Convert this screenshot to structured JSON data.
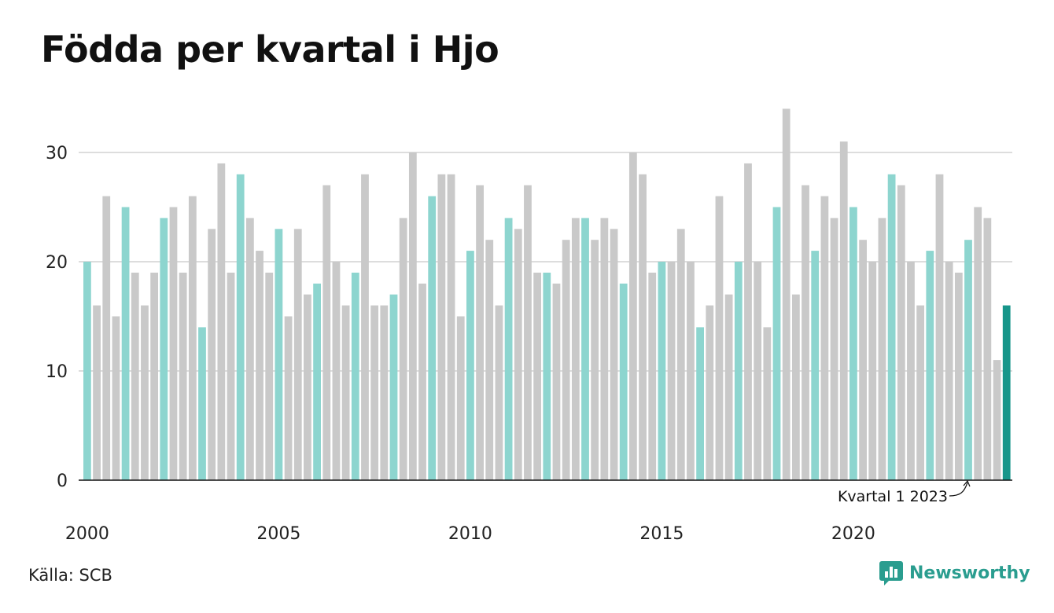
{
  "title": "Födda per kvartal i Hjo",
  "source": "Källa: SCB",
  "brand": {
    "name": "Newsworthy",
    "icon": "newsworthy-logo-icon"
  },
  "colors": {
    "q1": "#8dd5cf",
    "other": "#c9c9c9",
    "highlight": "#17968a",
    "grid": "#dddddd",
    "axis": "#111111"
  },
  "chart_data": {
    "type": "bar",
    "title": "Födda per kvartal i Hjo",
    "xlabel": "",
    "ylabel": "",
    "ylim": [
      0,
      34
    ],
    "yticks": [
      0,
      10,
      20,
      30
    ],
    "xtick_labels": [
      "2000",
      "2005",
      "2010",
      "2015",
      "2020"
    ],
    "grid": true,
    "start": "2000 Q1",
    "annotation": "Kvartal 1 2023",
    "values": [
      20,
      16,
      26,
      15,
      25,
      19,
      16,
      19,
      24,
      25,
      19,
      26,
      14,
      23,
      29,
      19,
      28,
      24,
      21,
      19,
      23,
      15,
      23,
      17,
      18,
      27,
      20,
      16,
      19,
      28,
      16,
      16,
      17,
      24,
      30,
      18,
      26,
      28,
      28,
      15,
      21,
      27,
      22,
      16,
      24,
      23,
      27,
      19,
      19,
      18,
      22,
      24,
      24,
      22,
      24,
      23,
      18,
      30,
      28,
      19,
      20,
      20,
      23,
      20,
      14,
      16,
      26,
      17,
      20,
      29,
      20,
      14,
      25,
      34,
      17,
      27,
      21,
      26,
      24,
      31,
      25,
      22,
      20,
      24,
      28,
      27,
      20,
      16,
      21,
      28,
      20,
      19,
      22,
      25,
      24,
      11,
      16
    ]
  }
}
